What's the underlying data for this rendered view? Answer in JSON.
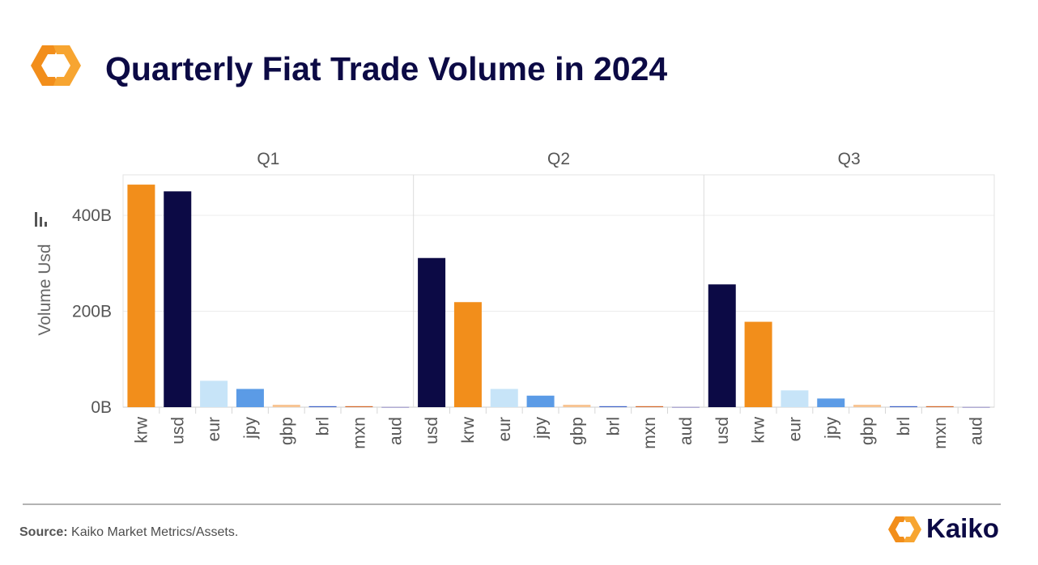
{
  "header": {
    "title": "Quarterly Fiat Trade Volume in 2024"
  },
  "chart_data": {
    "type": "bar",
    "title": "Quarterly Fiat Trade Volume in 2024",
    "ylabel": "Volume Usd",
    "xlabel": "",
    "ylim": [
      0,
      490
    ],
    "yticks": [
      0,
      200,
      400
    ],
    "ytick_labels": [
      "0B",
      "200B",
      "400B"
    ],
    "units": "billion USD",
    "grid": true,
    "panels": [
      {
        "label": "Q1",
        "categories": [
          "krw",
          "usd",
          "eur",
          "jpy",
          "gbp",
          "brl",
          "mxn",
          "aud"
        ],
        "values": [
          464,
          450,
          55,
          38,
          5,
          2,
          2,
          0.5
        ]
      },
      {
        "label": "Q2",
        "categories": [
          "usd",
          "krw",
          "eur",
          "jpy",
          "gbp",
          "brl",
          "mxn",
          "aud"
        ],
        "values": [
          311,
          219,
          38,
          24,
          5,
          2,
          2,
          0.5
        ]
      },
      {
        "label": "Q3",
        "categories": [
          "usd",
          "krw",
          "eur",
          "jpy",
          "gbp",
          "brl",
          "mxn",
          "aud"
        ],
        "values": [
          256,
          178,
          35,
          18,
          5,
          2,
          2,
          0.5
        ]
      }
    ],
    "category_colors": {
      "krw": "#f28e1b",
      "usd": "#0c0a45",
      "eur": "#c7e4f8",
      "jpy": "#5b9be6",
      "gbp": "#f7c493",
      "brl": "#3f62c8",
      "mxn": "#d4682a",
      "aud": "#8e8ac2"
    }
  },
  "footer": {
    "source_label": "Source:",
    "source_text": " Kaiko Market Metrics/Assets.",
    "brand": "Kaiko"
  },
  "colors": {
    "accent": "#f28e1b",
    "brand_navy": "#0c0a45"
  }
}
